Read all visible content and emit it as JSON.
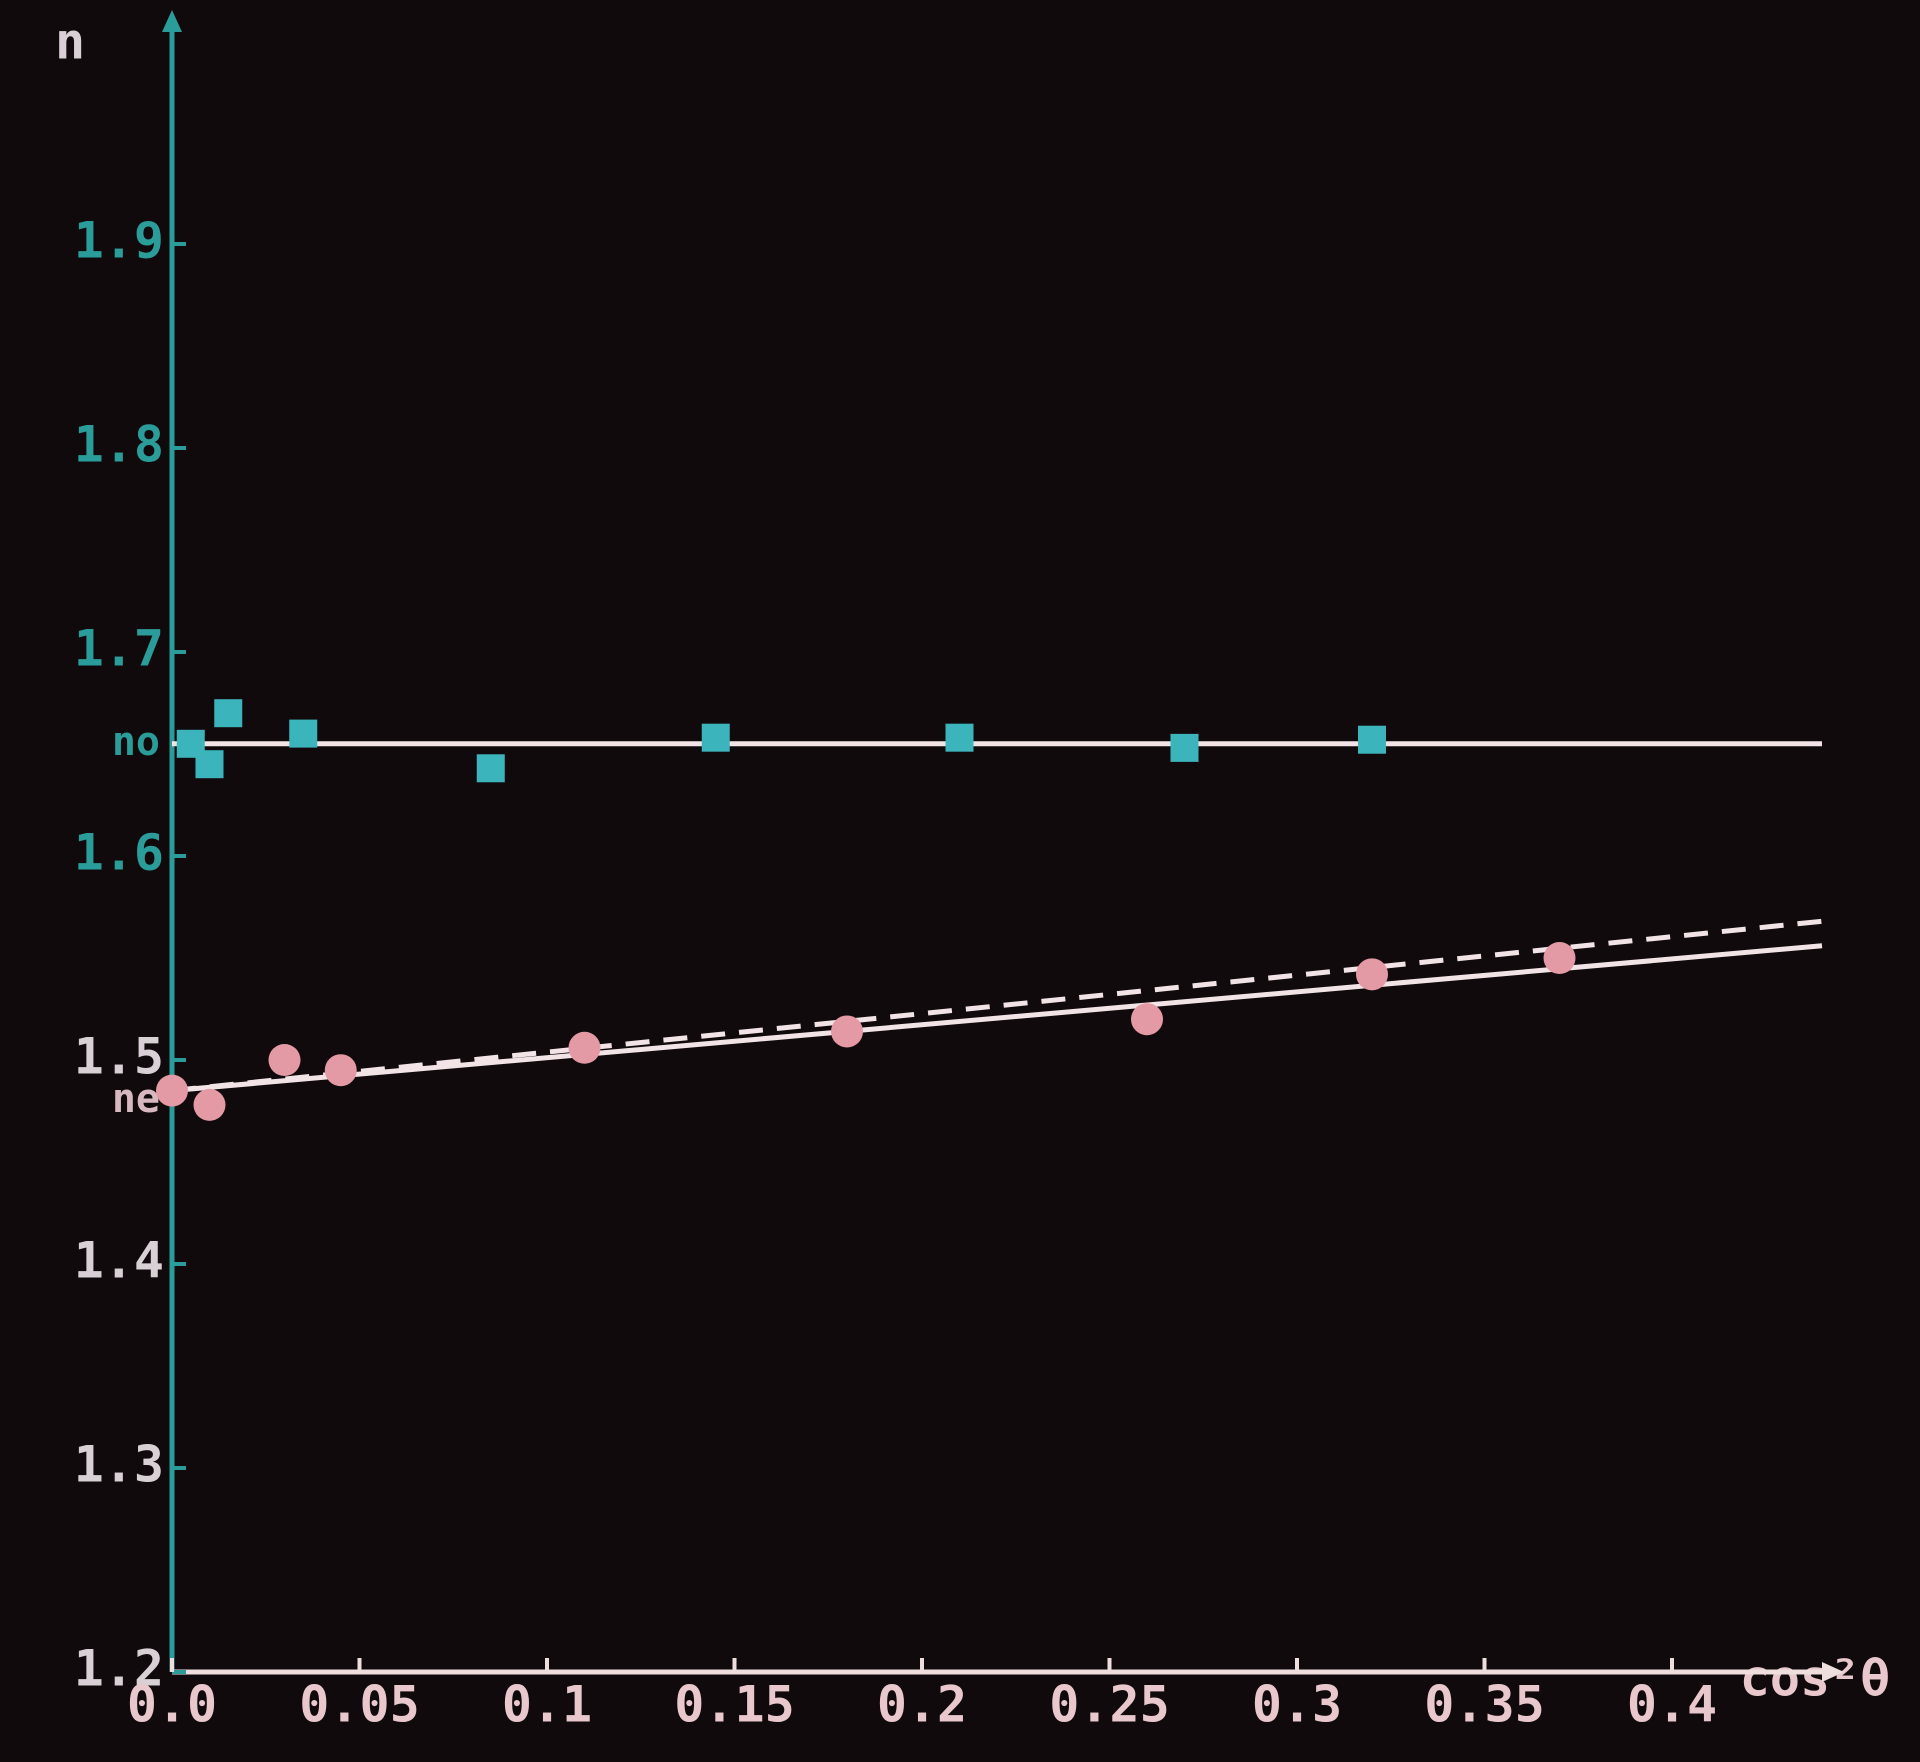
{
  "chart_data": {
    "type": "scatter",
    "x_label": "cos²θ",
    "y_label": "n",
    "xlim": [
      0,
      0.44
    ],
    "ylim": [
      1.2,
      2.0
    ],
    "xticks": [
      {
        "value": 0,
        "label": "0.0"
      },
      0.05,
      0.1,
      0.15,
      0.2,
      0.25,
      0.3,
      0.35,
      0.4
    ],
    "yticks": [
      1.2,
      1.3,
      1.4,
      1.5,
      1.6,
      1.7,
      1.8,
      1.9
    ],
    "annotations": [
      {
        "text": "no",
        "y": 1.655
      },
      {
        "text": "ne",
        "y": 1.48
      }
    ],
    "series": [
      {
        "name": "no",
        "color": "#3cb4bc",
        "marker": "square",
        "x": [
          0.005,
          0.01,
          0.015,
          0.035,
          0.085,
          0.145,
          0.21,
          0.27,
          0.32
        ],
        "values": [
          1.655,
          1.645,
          1.67,
          1.66,
          1.643,
          1.658,
          1.658,
          1.653,
          1.657
        ]
      },
      {
        "name": "ne",
        "color": "#e39aa4",
        "marker": "circle",
        "x": [
          0.0,
          0.01,
          0.03,
          0.045,
          0.11,
          0.18,
          0.26,
          0.32,
          0.37
        ],
        "values": [
          1.485,
          1.478,
          1.5,
          1.495,
          1.506,
          1.514,
          1.52,
          1.542,
          1.55
        ]
      }
    ],
    "fits": [
      {
        "color": "#f2e4e6",
        "dashed": false,
        "x": [
          0,
          0.44
        ],
        "values": [
          1.655,
          1.655
        ]
      },
      {
        "color": "#f2e4e6",
        "dashed": false,
        "x": [
          0,
          0.44
        ],
        "values": [
          1.485,
          1.556
        ]
      },
      {
        "color": "#f2e4e6",
        "dashed": true,
        "x": [
          0,
          0.44
        ],
        "values": [
          1.485,
          1.568
        ]
      }
    ]
  }
}
